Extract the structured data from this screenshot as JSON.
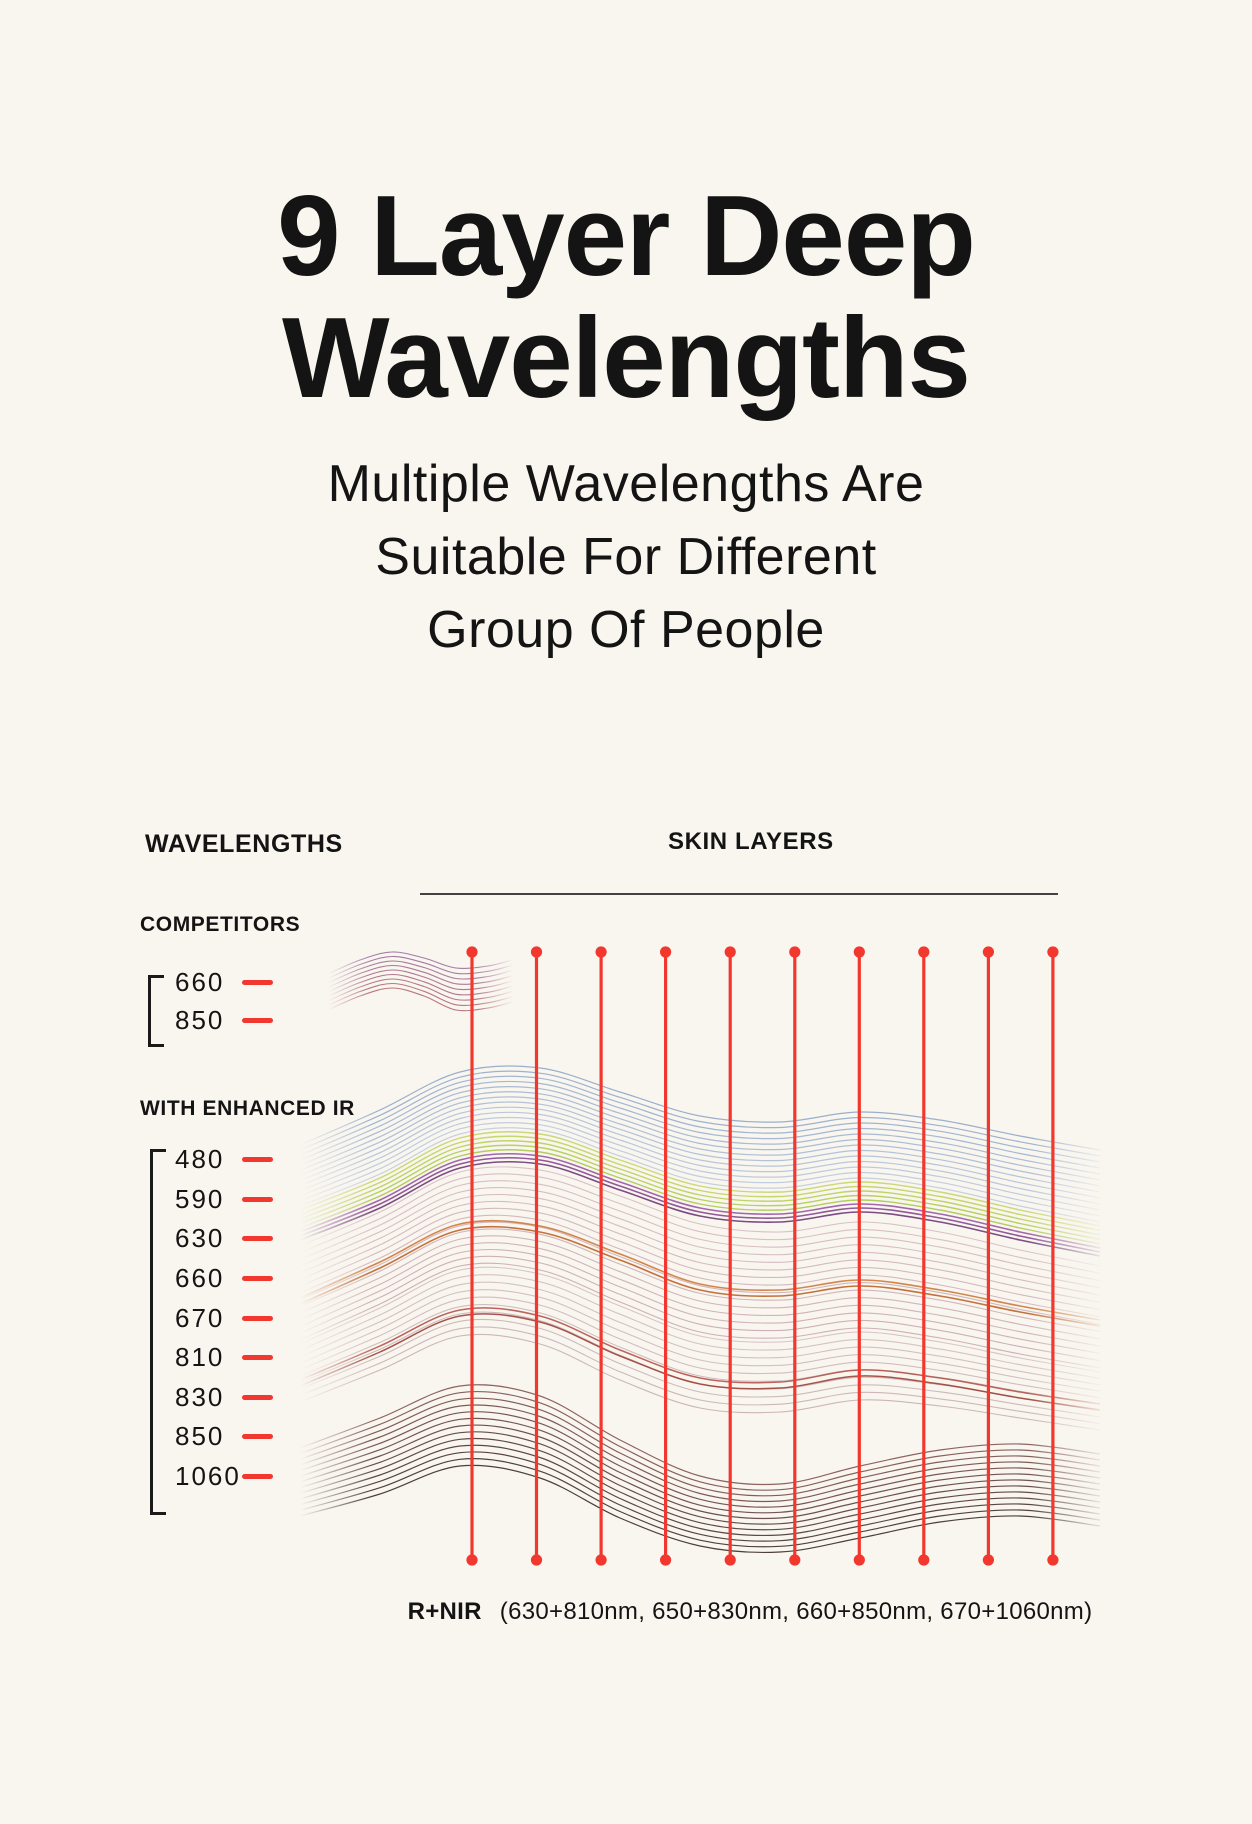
{
  "page": {
    "background": "#f9f6ef",
    "ink": "#141414",
    "accent_red": "#f2382e"
  },
  "title": {
    "line1": "9 Layer Deep",
    "line2": "Wavelengths"
  },
  "subtitle": {
    "line1": "Multiple Wavelengths Are",
    "line2": "Suitable For Different",
    "line3": "Group Of People"
  },
  "left_panel": {
    "heading": "WAVELENGTHS",
    "competitors": {
      "label": "COMPETITORS",
      "values": [
        "660",
        "850"
      ]
    },
    "enhanced": {
      "label": "WITH ENHANCED IR",
      "values": [
        "480",
        "590",
        "630",
        "660",
        "670",
        "810",
        "830",
        "850",
        "1060"
      ]
    }
  },
  "diagram": {
    "heading": "SKIN LAYERS",
    "marker_count": 10,
    "marker_color": "#f2382e",
    "art_colors": {
      "blue_top": "#8aa2c6",
      "blue_bottom": "#bcc9dc",
      "green_top": "#c6d467",
      "green_bottom": "#a9c94e",
      "purple_top": "#9a55a5",
      "purple_bottom": "#6e3a78",
      "pink_top": "#c49cae",
      "pink_bottom": "#b18093",
      "orange_top": "#d08040",
      "orange_bottom": "#c06a30",
      "mauve_top": "#bb9aa6",
      "mauve_bottom": "#a8808e",
      "rust_top": "#b2544a",
      "rust_bottom": "#9c4238",
      "maroon_top": "#7a4a46",
      "maroon_bottom": "#2e1e1e",
      "competitor_top": "#7d4a8a",
      "competitor_bottom": "#a04050"
    },
    "caption": {
      "prefix": "R+NIR",
      "detail": "(630+810nm, 650+830nm, 660+850nm, 670+1060nm)"
    }
  }
}
